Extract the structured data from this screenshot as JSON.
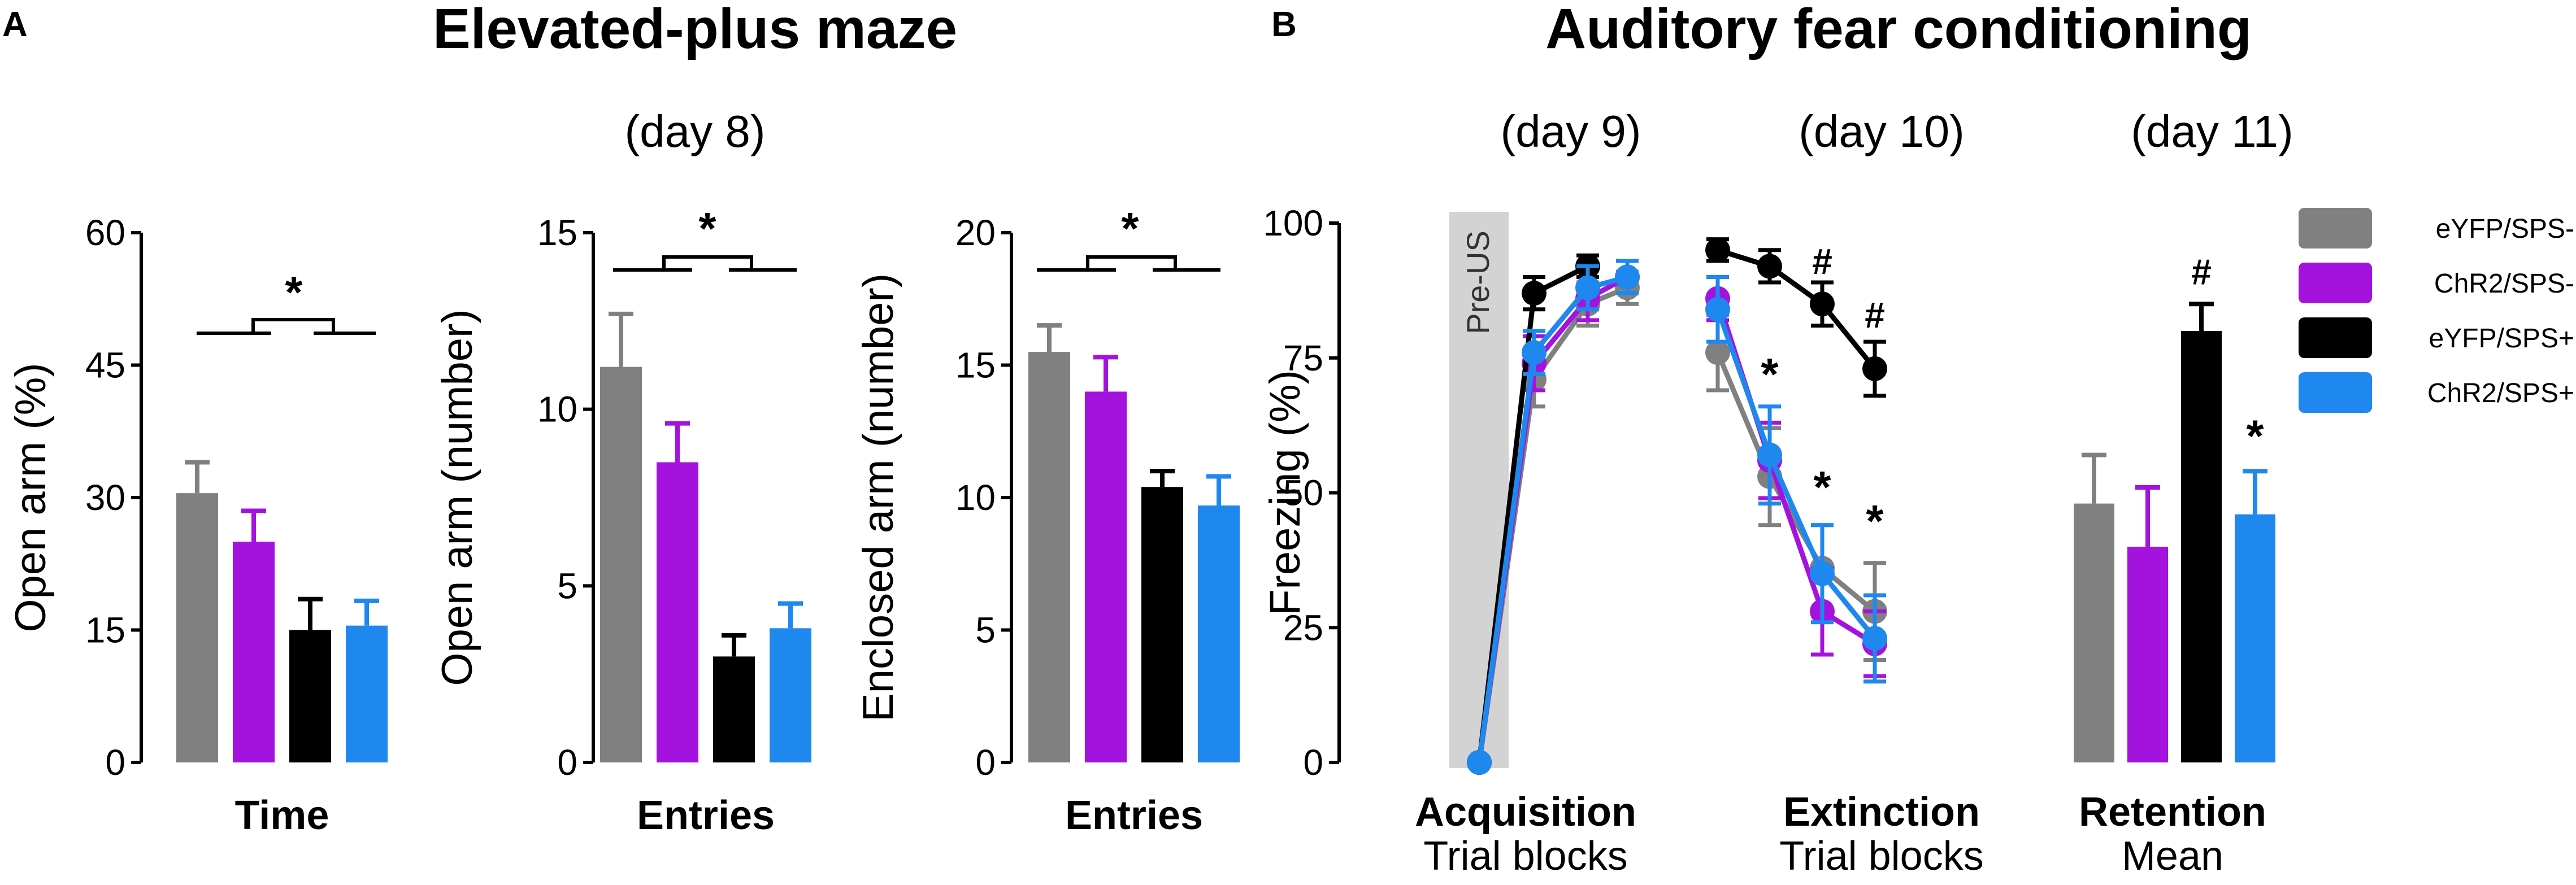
{
  "panels": {
    "A": {
      "letter": "A",
      "title": "Elevated-plus maze",
      "day": "(day 8)"
    },
    "B": {
      "letter": "B",
      "title": "Auditory fear conditioning",
      "days": [
        "(day 9)",
        "(day 10)",
        "(day 11)"
      ]
    }
  },
  "legend": [
    {
      "label": "eYFP/SPS-",
      "color": "#808080"
    },
    {
      "label": "ChR2/SPS-",
      "color": "#a413de"
    },
    {
      "label": "eYFP/SPS+",
      "color": "#000000"
    },
    {
      "label": "ChR2/SPS+",
      "color": "#1e88ee"
    }
  ],
  "chart_data": [
    {
      "type": "bar",
      "panel": "A",
      "id": "a1",
      "xlabel": "Time",
      "ylabel": "Open arm (%)",
      "ylim": [
        0,
        60
      ],
      "yticks": [
        0,
        15,
        30,
        45,
        60
      ],
      "categories": [
        "eYFP/SPS-",
        "ChR2/SPS-",
        "eYFP/SPS+",
        "ChR2/SPS+"
      ],
      "values": [
        30.5,
        25,
        15,
        15.5
      ],
      "errors": [
        3.5,
        3.5,
        3.5,
        2.8
      ],
      "significance": "*"
    },
    {
      "type": "bar",
      "panel": "A",
      "id": "a2",
      "xlabel": "Entries",
      "ylabel": "Open arm (number)",
      "ylim": [
        0,
        15
      ],
      "yticks": [
        0,
        5,
        10,
        15
      ],
      "categories": [
        "eYFP/SPS-",
        "ChR2/SPS-",
        "eYFP/SPS+",
        "ChR2/SPS+"
      ],
      "values": [
        11.2,
        8.5,
        3.0,
        3.8
      ],
      "errors": [
        1.5,
        1.1,
        0.6,
        0.7
      ],
      "significance": "*"
    },
    {
      "type": "bar",
      "panel": "A",
      "id": "a3",
      "xlabel": "Entries",
      "ylabel": "Enclosed arm (number)",
      "ylim": [
        0,
        20
      ],
      "yticks": [
        0,
        5,
        10,
        15,
        20
      ],
      "categories": [
        "eYFP/SPS-",
        "ChR2/SPS-",
        "eYFP/SPS+",
        "ChR2/SPS+"
      ],
      "values": [
        15.5,
        14.0,
        10.4,
        9.7
      ],
      "errors": [
        1.0,
        1.3,
        0.6,
        1.1
      ],
      "significance": "*"
    },
    {
      "type": "line",
      "panel": "B",
      "id": "b1",
      "ylabel": "Freezing (%)",
      "ylim": [
        0,
        100
      ],
      "yticks": [
        0,
        25,
        50,
        75,
        100
      ],
      "shade_label": "Pre-US",
      "segments": [
        {
          "name": "acquisition",
          "xlabel": "Acquisition",
          "xsub": "Trial blocks",
          "x": [
            0,
            1,
            2,
            3
          ]
        },
        {
          "name": "extinction",
          "xlabel": "Extinction",
          "xsub": "Trial blocks",
          "x": [
            0,
            1,
            2,
            3
          ]
        }
      ],
      "series": [
        {
          "name": "eYFP/SPS-",
          "color": "#808080",
          "acquisition": [
            0,
            71,
            85,
            88
          ],
          "acquisition_err": [
            0,
            5,
            4,
            3
          ],
          "extinction": [
            76,
            53,
            36,
            28
          ],
          "extinction_err": [
            7,
            9,
            8,
            9
          ]
        },
        {
          "name": "ChR2/SPS-",
          "color": "#a413de",
          "acquisition": [
            0,
            74,
            86,
            90
          ],
          "acquisition_err": [
            0,
            5,
            4,
            3
          ],
          "extinction": [
            86,
            56,
            28,
            22
          ],
          "extinction_err": [
            4,
            7,
            8,
            6
          ]
        },
        {
          "name": "eYFP/SPS+",
          "color": "#000000",
          "acquisition": [
            0,
            87,
            92,
            null
          ],
          "acquisition_err": [
            0,
            3,
            2,
            null
          ],
          "extinction": [
            95,
            92,
            85,
            73
          ],
          "extinction_err": [
            2,
            3,
            4,
            5
          ]
        },
        {
          "name": "ChR2/SPS+",
          "color": "#1e88ee",
          "acquisition": [
            0,
            76,
            88,
            90
          ],
          "acquisition_err": [
            0,
            4,
            4,
            3
          ],
          "extinction": [
            84,
            57,
            35,
            23
          ],
          "extinction_err": [
            6,
            9,
            9,
            8
          ]
        }
      ],
      "annotations": {
        "extinction_hash": [
          "",
          "",
          "#",
          "#"
        ],
        "extinction_star": [
          "",
          "*",
          "*",
          "*"
        ]
      }
    },
    {
      "type": "bar",
      "panel": "B",
      "id": "b2",
      "xlabel": "Retention",
      "xsub": "Mean",
      "ylim": [
        0,
        100
      ],
      "categories": [
        "eYFP/SPS-",
        "ChR2/SPS-",
        "eYFP/SPS+",
        "ChR2/SPS+"
      ],
      "values": [
        48,
        40,
        80,
        46
      ],
      "errors": [
        9,
        11,
        5,
        8
      ],
      "marks": [
        "",
        "",
        "#",
        "*"
      ]
    }
  ]
}
